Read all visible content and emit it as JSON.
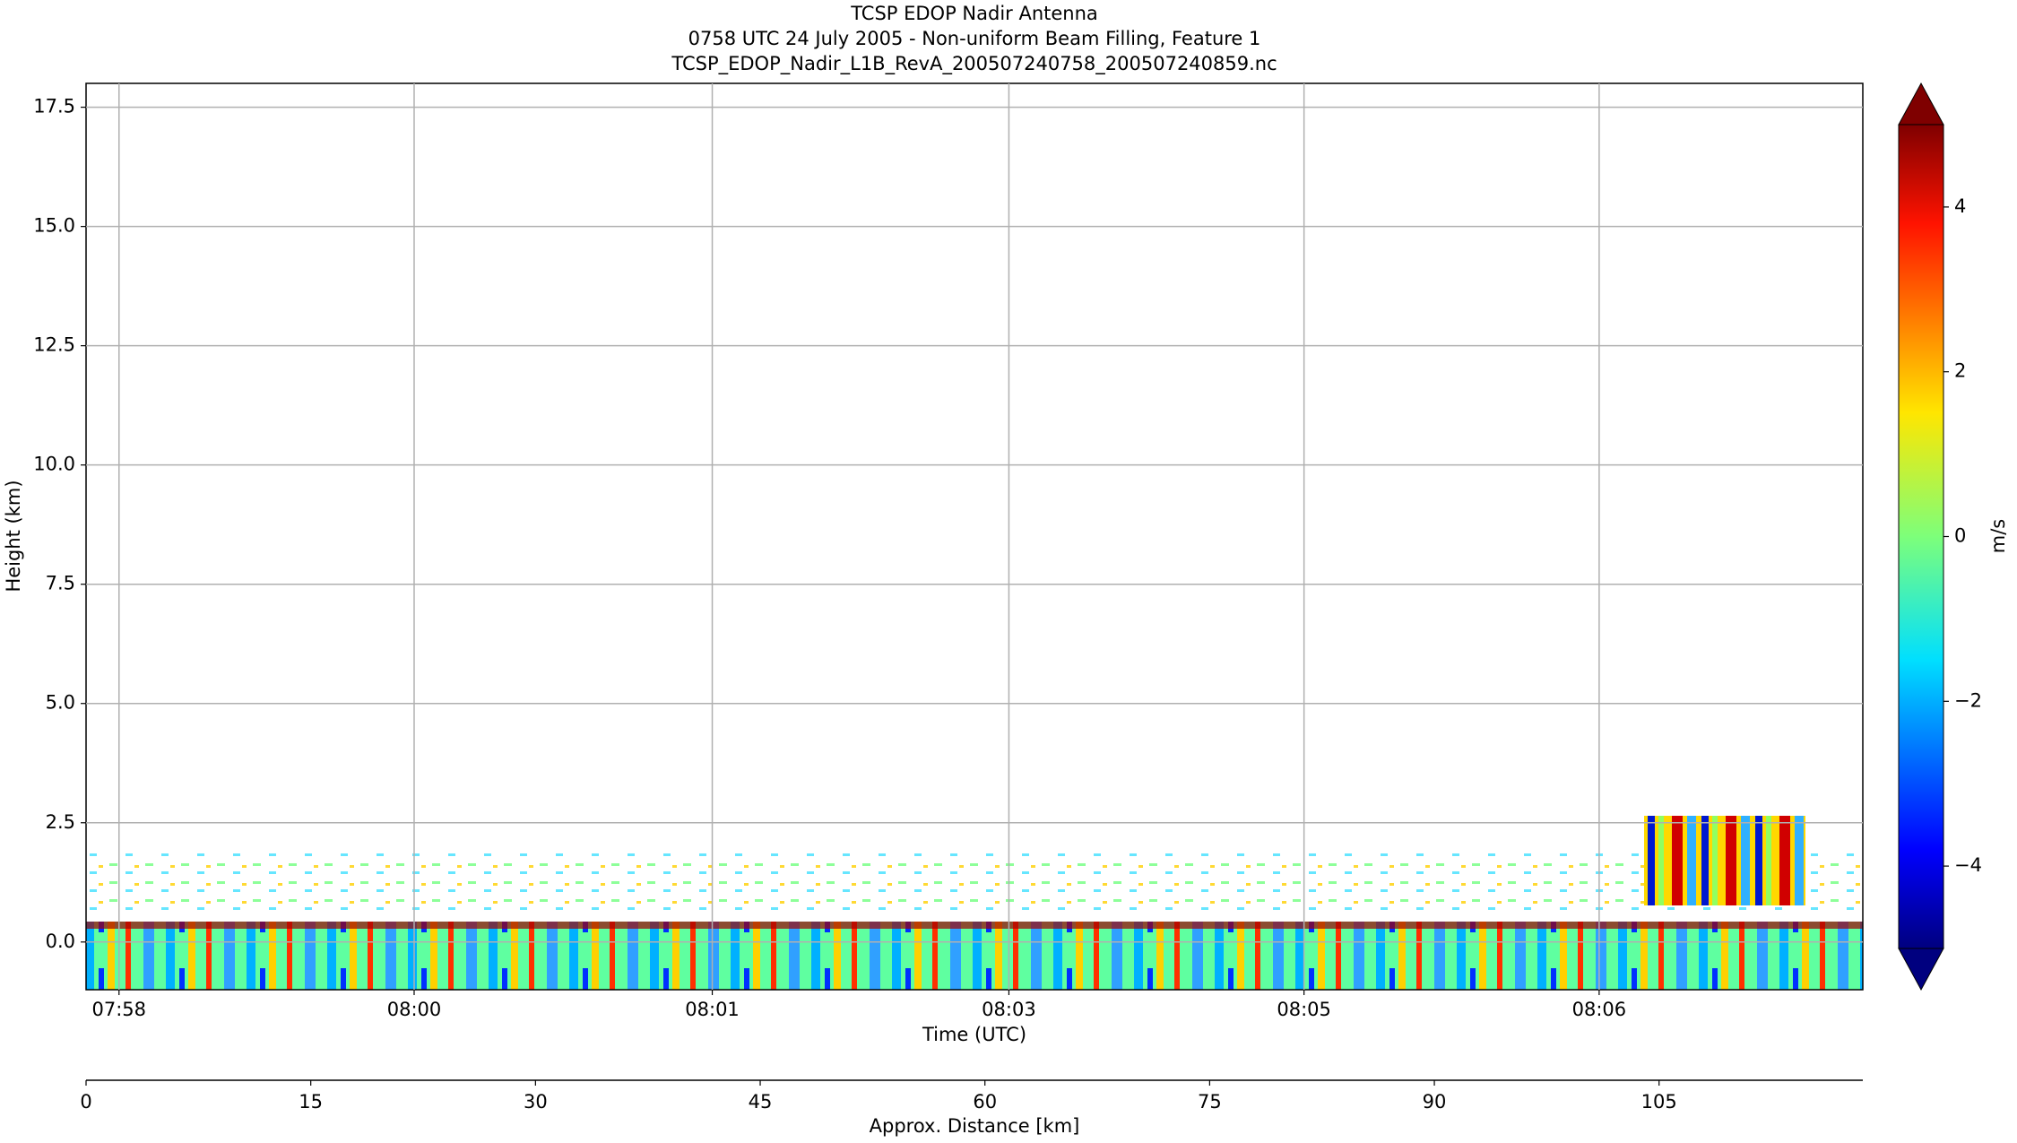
{
  "chart_data": {
    "type": "heatmap",
    "title": [
      "TCSP EDOP Nadir Antenna",
      "0758 UTC 24 July 2005 - Non-uniform Beam Filling, Feature 1",
      "TCSP_EDOP_Nadir_L1B_RevA_200507240758_200507240859.nc"
    ],
    "ylabel": "Height (km)",
    "xlabel": "Time (UTC)",
    "x2label": "Approx. Distance [km]",
    "colorbar_label": "m/s",
    "xlim": [
      0,
      118.6
    ],
    "ylim": [
      -1,
      18
    ],
    "vlim": [
      -5,
      5
    ],
    "grid": true,
    "colormap": "jet",
    "yticks": [
      {
        "value": 0,
        "label": "0.0"
      },
      {
        "value": 2.5,
        "label": "2.5"
      },
      {
        "value": 5,
        "label": "5.0"
      },
      {
        "value": 7.5,
        "label": "7.5"
      },
      {
        "value": 10,
        "label": "10.0"
      },
      {
        "value": 12.5,
        "label": "12.5"
      },
      {
        "value": 15,
        "label": "15.0"
      },
      {
        "value": 17.5,
        "label": "17.5"
      }
    ],
    "xticks": [
      {
        "value": 2.2,
        "label": "07:58"
      },
      {
        "value": 21.9,
        "label": "08:00"
      },
      {
        "value": 41.8,
        "label": "08:01"
      },
      {
        "value": 61.6,
        "label": "08:03"
      },
      {
        "value": 81.3,
        "label": "08:05"
      },
      {
        "value": 101,
        "label": "08:06"
      }
    ],
    "x2ticks": [
      0,
      15,
      30,
      45,
      60,
      75,
      90,
      105
    ],
    "vticks": [
      {
        "value": -4,
        "label": "−4"
      },
      {
        "value": -2,
        "label": "−2"
      },
      0,
      2,
      4
    ]
  }
}
